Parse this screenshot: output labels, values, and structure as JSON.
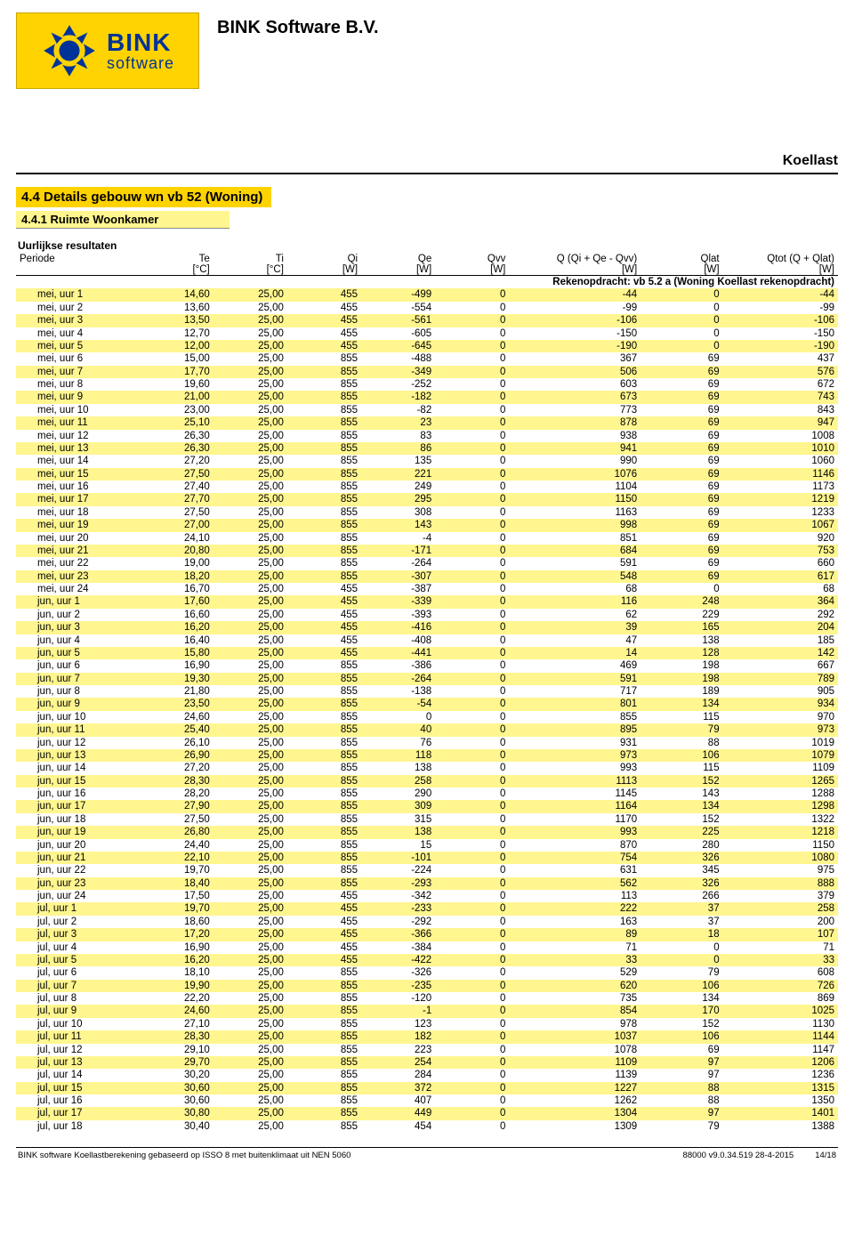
{
  "header": {
    "company": "BINK Software B.V.",
    "logo_line1": "BINK",
    "logo_line2": "software",
    "doc_label": "Koellast",
    "logo_bg": "#ffd300",
    "logo_text_color": "#003399"
  },
  "section": {
    "title": "4.4 Details gebouw wn vb 52 (Woning)",
    "subtitle": "4.4.1 Ruimte Woonkamer"
  },
  "table": {
    "title": "Uurlijkse resultaten",
    "subhead": "Rekenopdracht: vb 5.2 a (Woning Koellast rekenopdracht)",
    "stripe_color": "#fff68f",
    "col_widths": [
      "15%",
      "9%",
      "9%",
      "9%",
      "9%",
      "9%",
      "16%",
      "10%",
      "14%"
    ],
    "columns": [
      {
        "label": "Periode",
        "units": "",
        "align": "left"
      },
      {
        "label": "Te",
        "units": "[°C]",
        "align": "right"
      },
      {
        "label": "Ti",
        "units": "[°C]",
        "align": "right"
      },
      {
        "label": "Qi",
        "units": "[W]",
        "align": "right"
      },
      {
        "label": "Qe",
        "units": "[W]",
        "align": "right"
      },
      {
        "label": "Qvv",
        "units": "[W]",
        "align": "right"
      },
      {
        "label": "Q (Qi + Qe - Qvv)",
        "units": "[W]",
        "align": "right"
      },
      {
        "label": "Qlat",
        "units": "[W]",
        "align": "right"
      },
      {
        "label": "Qtot (Q + Qlat)",
        "units": "[W]",
        "align": "right"
      }
    ],
    "rows": [
      [
        "mei, uur 1",
        "14,60",
        "25,00",
        "455",
        "-499",
        "0",
        "-44",
        "0",
        "-44"
      ],
      [
        "mei, uur 2",
        "13,60",
        "25,00",
        "455",
        "-554",
        "0",
        "-99",
        "0",
        "-99"
      ],
      [
        "mei, uur 3",
        "13,50",
        "25,00",
        "455",
        "-561",
        "0",
        "-106",
        "0",
        "-106"
      ],
      [
        "mei, uur 4",
        "12,70",
        "25,00",
        "455",
        "-605",
        "0",
        "-150",
        "0",
        "-150"
      ],
      [
        "mei, uur 5",
        "12,00",
        "25,00",
        "455",
        "-645",
        "0",
        "-190",
        "0",
        "-190"
      ],
      [
        "mei, uur 6",
        "15,00",
        "25,00",
        "855",
        "-488",
        "0",
        "367",
        "69",
        "437"
      ],
      [
        "mei, uur 7",
        "17,70",
        "25,00",
        "855",
        "-349",
        "0",
        "506",
        "69",
        "576"
      ],
      [
        "mei, uur 8",
        "19,60",
        "25,00",
        "855",
        "-252",
        "0",
        "603",
        "69",
        "672"
      ],
      [
        "mei, uur 9",
        "21,00",
        "25,00",
        "855",
        "-182",
        "0",
        "673",
        "69",
        "743"
      ],
      [
        "mei, uur 10",
        "23,00",
        "25,00",
        "855",
        "-82",
        "0",
        "773",
        "69",
        "843"
      ],
      [
        "mei, uur 11",
        "25,10",
        "25,00",
        "855",
        "23",
        "0",
        "878",
        "69",
        "947"
      ],
      [
        "mei, uur 12",
        "26,30",
        "25,00",
        "855",
        "83",
        "0",
        "938",
        "69",
        "1008"
      ],
      [
        "mei, uur 13",
        "26,30",
        "25,00",
        "855",
        "86",
        "0",
        "941",
        "69",
        "1010"
      ],
      [
        "mei, uur 14",
        "27,20",
        "25,00",
        "855",
        "135",
        "0",
        "990",
        "69",
        "1060"
      ],
      [
        "mei, uur 15",
        "27,50",
        "25,00",
        "855",
        "221",
        "0",
        "1076",
        "69",
        "1146"
      ],
      [
        "mei, uur 16",
        "27,40",
        "25,00",
        "855",
        "249",
        "0",
        "1104",
        "69",
        "1173"
      ],
      [
        "mei, uur 17",
        "27,70",
        "25,00",
        "855",
        "295",
        "0",
        "1150",
        "69",
        "1219"
      ],
      [
        "mei, uur 18",
        "27,50",
        "25,00",
        "855",
        "308",
        "0",
        "1163",
        "69",
        "1233"
      ],
      [
        "mei, uur 19",
        "27,00",
        "25,00",
        "855",
        "143",
        "0",
        "998",
        "69",
        "1067"
      ],
      [
        "mei, uur 20",
        "24,10",
        "25,00",
        "855",
        "-4",
        "0",
        "851",
        "69",
        "920"
      ],
      [
        "mei, uur 21",
        "20,80",
        "25,00",
        "855",
        "-171",
        "0",
        "684",
        "69",
        "753"
      ],
      [
        "mei, uur 22",
        "19,00",
        "25,00",
        "855",
        "-264",
        "0",
        "591",
        "69",
        "660"
      ],
      [
        "mei, uur 23",
        "18,20",
        "25,00",
        "855",
        "-307",
        "0",
        "548",
        "69",
        "617"
      ],
      [
        "mei, uur 24",
        "16,70",
        "25,00",
        "455",
        "-387",
        "0",
        "68",
        "0",
        "68"
      ],
      [
        "jun, uur 1",
        "17,60",
        "25,00",
        "455",
        "-339",
        "0",
        "116",
        "248",
        "364"
      ],
      [
        "jun, uur 2",
        "16,60",
        "25,00",
        "455",
        "-393",
        "0",
        "62",
        "229",
        "292"
      ],
      [
        "jun, uur 3",
        "16,20",
        "25,00",
        "455",
        "-416",
        "0",
        "39",
        "165",
        "204"
      ],
      [
        "jun, uur 4",
        "16,40",
        "25,00",
        "455",
        "-408",
        "0",
        "47",
        "138",
        "185"
      ],
      [
        "jun, uur 5",
        "15,80",
        "25,00",
        "455",
        "-441",
        "0",
        "14",
        "128",
        "142"
      ],
      [
        "jun, uur 6",
        "16,90",
        "25,00",
        "855",
        "-386",
        "0",
        "469",
        "198",
        "667"
      ],
      [
        "jun, uur 7",
        "19,30",
        "25,00",
        "855",
        "-264",
        "0",
        "591",
        "198",
        "789"
      ],
      [
        "jun, uur 8",
        "21,80",
        "25,00",
        "855",
        "-138",
        "0",
        "717",
        "189",
        "905"
      ],
      [
        "jun, uur 9",
        "23,50",
        "25,00",
        "855",
        "-54",
        "0",
        "801",
        "134",
        "934"
      ],
      [
        "jun, uur 10",
        "24,60",
        "25,00",
        "855",
        "0",
        "0",
        "855",
        "115",
        "970"
      ],
      [
        "jun, uur 11",
        "25,40",
        "25,00",
        "855",
        "40",
        "0",
        "895",
        "79",
        "973"
      ],
      [
        "jun, uur 12",
        "26,10",
        "25,00",
        "855",
        "76",
        "0",
        "931",
        "88",
        "1019"
      ],
      [
        "jun, uur 13",
        "26,90",
        "25,00",
        "855",
        "118",
        "0",
        "973",
        "106",
        "1079"
      ],
      [
        "jun, uur 14",
        "27,20",
        "25,00",
        "855",
        "138",
        "0",
        "993",
        "115",
        "1109"
      ],
      [
        "jun, uur 15",
        "28,30",
        "25,00",
        "855",
        "258",
        "0",
        "1113",
        "152",
        "1265"
      ],
      [
        "jun, uur 16",
        "28,20",
        "25,00",
        "855",
        "290",
        "0",
        "1145",
        "143",
        "1288"
      ],
      [
        "jun, uur 17",
        "27,90",
        "25,00",
        "855",
        "309",
        "0",
        "1164",
        "134",
        "1298"
      ],
      [
        "jun, uur 18",
        "27,50",
        "25,00",
        "855",
        "315",
        "0",
        "1170",
        "152",
        "1322"
      ],
      [
        "jun, uur 19",
        "26,80",
        "25,00",
        "855",
        "138",
        "0",
        "993",
        "225",
        "1218"
      ],
      [
        "jun, uur 20",
        "24,40",
        "25,00",
        "855",
        "15",
        "0",
        "870",
        "280",
        "1150"
      ],
      [
        "jun, uur 21",
        "22,10",
        "25,00",
        "855",
        "-101",
        "0",
        "754",
        "326",
        "1080"
      ],
      [
        "jun, uur 22",
        "19,70",
        "25,00",
        "855",
        "-224",
        "0",
        "631",
        "345",
        "975"
      ],
      [
        "jun, uur 23",
        "18,40",
        "25,00",
        "855",
        "-293",
        "0",
        "562",
        "326",
        "888"
      ],
      [
        "jun, uur 24",
        "17,50",
        "25,00",
        "455",
        "-342",
        "0",
        "113",
        "266",
        "379"
      ],
      [
        "jul, uur 1",
        "19,70",
        "25,00",
        "455",
        "-233",
        "0",
        "222",
        "37",
        "258"
      ],
      [
        "jul, uur 2",
        "18,60",
        "25,00",
        "455",
        "-292",
        "0",
        "163",
        "37",
        "200"
      ],
      [
        "jul, uur 3",
        "17,20",
        "25,00",
        "455",
        "-366",
        "0",
        "89",
        "18",
        "107"
      ],
      [
        "jul, uur 4",
        "16,90",
        "25,00",
        "455",
        "-384",
        "0",
        "71",
        "0",
        "71"
      ],
      [
        "jul, uur 5",
        "16,20",
        "25,00",
        "455",
        "-422",
        "0",
        "33",
        "0",
        "33"
      ],
      [
        "jul, uur 6",
        "18,10",
        "25,00",
        "855",
        "-326",
        "0",
        "529",
        "79",
        "608"
      ],
      [
        "jul, uur 7",
        "19,90",
        "25,00",
        "855",
        "-235",
        "0",
        "620",
        "106",
        "726"
      ],
      [
        "jul, uur 8",
        "22,20",
        "25,00",
        "855",
        "-120",
        "0",
        "735",
        "134",
        "869"
      ],
      [
        "jul, uur 9",
        "24,60",
        "25,00",
        "855",
        "-1",
        "0",
        "854",
        "170",
        "1025"
      ],
      [
        "jul, uur 10",
        "27,10",
        "25,00",
        "855",
        "123",
        "0",
        "978",
        "152",
        "1130"
      ],
      [
        "jul, uur 11",
        "28,30",
        "25,00",
        "855",
        "182",
        "0",
        "1037",
        "106",
        "1144"
      ],
      [
        "jul, uur 12",
        "29,10",
        "25,00",
        "855",
        "223",
        "0",
        "1078",
        "69",
        "1147"
      ],
      [
        "jul, uur 13",
        "29,70",
        "25,00",
        "855",
        "254",
        "0",
        "1109",
        "97",
        "1206"
      ],
      [
        "jul, uur 14",
        "30,20",
        "25,00",
        "855",
        "284",
        "0",
        "1139",
        "97",
        "1236"
      ],
      [
        "jul, uur 15",
        "30,60",
        "25,00",
        "855",
        "372",
        "0",
        "1227",
        "88",
        "1315"
      ],
      [
        "jul, uur 16",
        "30,60",
        "25,00",
        "855",
        "407",
        "0",
        "1262",
        "88",
        "1350"
      ],
      [
        "jul, uur 17",
        "30,80",
        "25,00",
        "855",
        "449",
        "0",
        "1304",
        "97",
        "1401"
      ],
      [
        "jul, uur 18",
        "30,40",
        "25,00",
        "855",
        "454",
        "0",
        "1309",
        "79",
        "1388"
      ]
    ]
  },
  "footer": {
    "left": "BINK software Koellastberekening gebaseerd op ISSO 8 met buitenklimaat uit NEN 5060",
    "version": "88000 v9.0.34.519 28-4-2015",
    "page": "14/18"
  }
}
